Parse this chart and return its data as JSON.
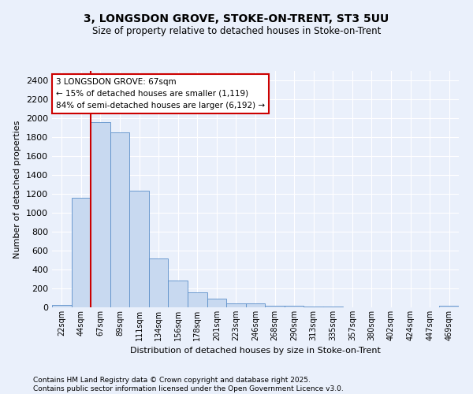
{
  "title1": "3, LONGSDON GROVE, STOKE-ON-TRENT, ST3 5UU",
  "title2": "Size of property relative to detached houses in Stoke-on-Trent",
  "xlabel": "Distribution of detached houses by size in Stoke-on-Trent",
  "ylabel": "Number of detached properties",
  "bin_labels": [
    "22sqm",
    "44sqm",
    "67sqm",
    "89sqm",
    "111sqm",
    "134sqm",
    "156sqm",
    "178sqm",
    "201sqm",
    "223sqm",
    "246sqm",
    "268sqm",
    "290sqm",
    "313sqm",
    "335sqm",
    "357sqm",
    "380sqm",
    "402sqm",
    "424sqm",
    "447sqm",
    "469sqm"
  ],
  "bar_values": [
    25,
    1160,
    1960,
    1850,
    1230,
    520,
    280,
    155,
    95,
    45,
    45,
    18,
    14,
    8,
    5,
    4,
    3,
    3,
    2,
    2,
    15
  ],
  "bar_color": "#c8d9f0",
  "bar_edge_color": "#5b8fc9",
  "vline_color": "#cc0000",
  "annotation_text": "3 LONGSDON GROVE: 67sqm\n← 15% of detached houses are smaller (1,119)\n84% of semi-detached houses are larger (6,192) →",
  "annotation_box_color": "#ffffff",
  "annotation_box_edge": "#cc0000",
  "footer_text": "Contains HM Land Registry data © Crown copyright and database right 2025.\nContains public sector information licensed under the Open Government Licence v3.0.",
  "bg_color": "#eaf0fb",
  "ylim": [
    0,
    2500
  ],
  "yticks": [
    0,
    200,
    400,
    600,
    800,
    1000,
    1200,
    1400,
    1600,
    1800,
    2000,
    2200,
    2400
  ]
}
